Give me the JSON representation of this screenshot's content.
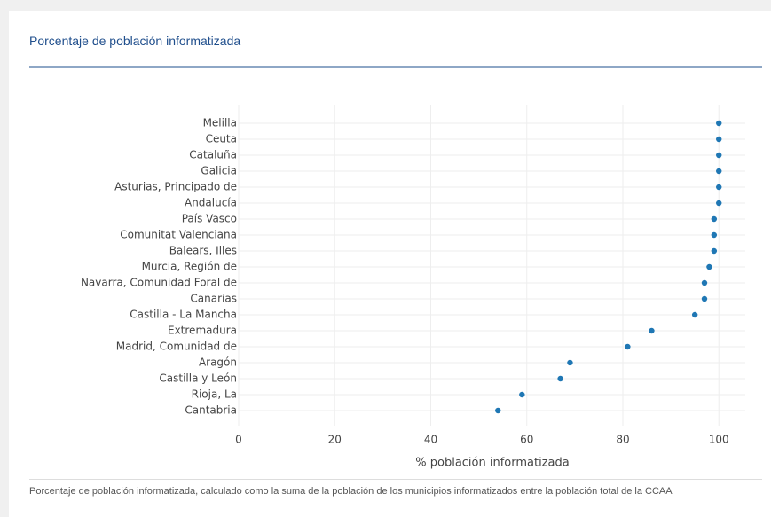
{
  "chart_data": {
    "type": "scatter",
    "title": "Porcentaje de población informatizada",
    "categories": [
      "Melilla",
      "Ceuta",
      "Cataluña",
      "Galicia",
      "Asturias, Principado de",
      "Andalucía",
      "País Vasco",
      "Comunitat Valenciana",
      "Balears, Illes",
      "Murcia, Región de",
      "Navarra, Comunidad Foral de",
      "Canarias",
      "Castilla - La Mancha",
      "Extremadura",
      "Madrid, Comunidad de",
      "Aragón",
      "Castilla y León",
      "Rioja, La",
      "Cantabria"
    ],
    "values": [
      100,
      100,
      100,
      100,
      100,
      100,
      99,
      99,
      99,
      98,
      97,
      97,
      95,
      86,
      81,
      69,
      67,
      59,
      54
    ],
    "color": "#1f77b4",
    "xlim": [
      0,
      105.5
    ],
    "xticks": [
      0,
      20,
      40,
      60,
      80,
      100
    ],
    "xlabel": "% población informatizada",
    "grid": true,
    "note": "Porcentaje de población informatizada, calculado como la suma de la población de los municipios informatizados entre la población total de la CCAA"
  }
}
